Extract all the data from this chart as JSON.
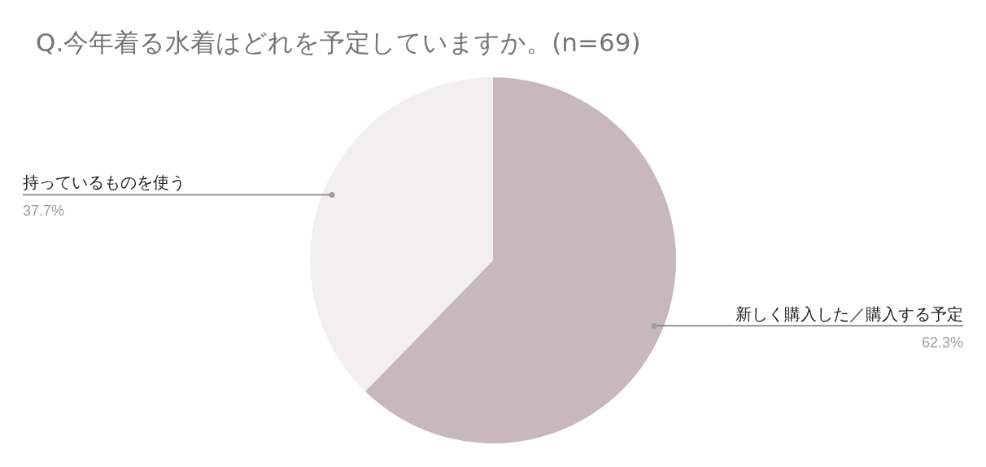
{
  "chart_data": {
    "type": "pie",
    "title": "Q.今年着る水着はどれを予定していますか。(n=69)",
    "categories": [
      "新しく購入した／購入する予定",
      "持っているものを使う"
    ],
    "values": [
      62.3,
      37.7
    ],
    "colors": [
      "#c9b8bb",
      "#f2eff0"
    ],
    "value_labels": [
      "62.3%",
      "37.7%"
    ],
    "legend": false
  }
}
